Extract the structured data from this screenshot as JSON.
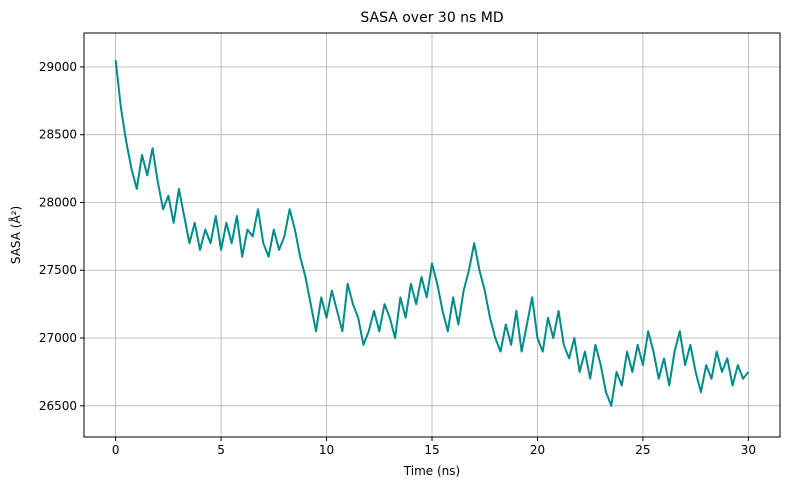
{
  "chart_data": {
    "type": "line",
    "title": "SASA over 30 ns MD",
    "x_label": "Time (ns)",
    "y_label": "SASA (Å²)",
    "x": [
      0,
      0.25,
      0.5,
      0.75,
      1,
      1.25,
      1.5,
      1.75,
      2,
      2.25,
      2.5,
      2.75,
      3,
      3.25,
      3.5,
      3.75,
      4,
      4.25,
      4.5,
      4.75,
      5,
      5.25,
      5.5,
      5.75,
      6,
      6.25,
      6.5,
      6.75,
      7,
      7.25,
      7.5,
      7.75,
      8,
      8.25,
      8.5,
      8.75,
      9,
      9.25,
      9.5,
      9.75,
      10,
      10.25,
      10.5,
      10.75,
      11,
      11.25,
      11.5,
      11.75,
      12,
      12.25,
      12.5,
      12.75,
      13,
      13.25,
      13.5,
      13.75,
      14,
      14.25,
      14.5,
      14.75,
      15,
      15.25,
      15.5,
      15.75,
      16,
      16.25,
      16.5,
      16.75,
      17,
      17.25,
      17.5,
      17.75,
      18,
      18.25,
      18.5,
      18.75,
      19,
      19.25,
      19.5,
      19.75,
      20,
      20.25,
      20.5,
      20.75,
      21,
      21.25,
      21.5,
      21.75,
      22,
      22.25,
      22.5,
      22.75,
      23,
      23.25,
      23.5,
      23.75,
      24,
      24.25,
      24.5,
      24.75,
      25,
      25.25,
      25.5,
      25.75,
      26,
      26.25,
      26.5,
      26.75,
      27,
      27.25,
      27.5,
      27.75,
      28,
      28.25,
      28.5,
      28.75,
      29,
      29.25,
      29.5,
      29.75,
      30
    ],
    "values": [
      29050,
      28700,
      28450,
      28250,
      28100,
      28350,
      28200,
      28400,
      28150,
      27950,
      28050,
      27850,
      28100,
      27900,
      27700,
      27850,
      27650,
      27800,
      27700,
      27900,
      27650,
      27850,
      27700,
      27900,
      27600,
      27800,
      27750,
      27950,
      27700,
      27600,
      27800,
      27650,
      27750,
      27950,
      27800,
      27600,
      27450,
      27250,
      27050,
      27300,
      27150,
      27350,
      27200,
      27050,
      27400,
      27250,
      27150,
      26950,
      27050,
      27200,
      27050,
      27250,
      27150,
      27000,
      27300,
      27150,
      27400,
      27250,
      27450,
      27300,
      27550,
      27400,
      27200,
      27050,
      27300,
      27100,
      27350,
      27500,
      27700,
      27500,
      27350,
      27150,
      27000,
      26900,
      27100,
      26950,
      27200,
      26900,
      27100,
      27300,
      27000,
      26900,
      27150,
      27000,
      27200,
      26950,
      26850,
      27000,
      26750,
      26900,
      26700,
      26950,
      26800,
      26600,
      26500,
      26750,
      26650,
      26900,
      26750,
      26950,
      26800,
      27050,
      26900,
      26700,
      26850,
      26650,
      26900,
      27050,
      26800,
      26950,
      26750,
      26600,
      26800,
      26700,
      26900,
      26750,
      26850,
      26650,
      26800,
      26700,
      26750
    ],
    "color": "#008b8b",
    "xlim": [
      -1.5,
      31.5
    ],
    "xticks": [
      0,
      5,
      10,
      15,
      20,
      25,
      30
    ],
    "ylim": [
      26270,
      29250
    ],
    "yticks": [
      26500,
      27000,
      27500,
      28000,
      28500,
      29000
    ],
    "grid": true
  }
}
